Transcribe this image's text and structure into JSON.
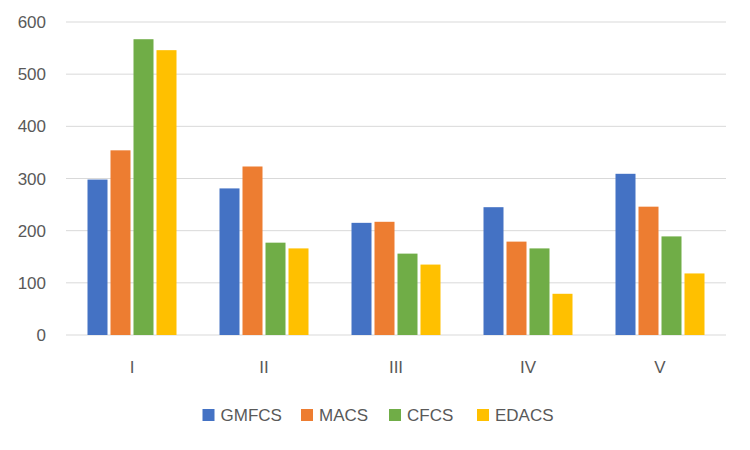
{
  "chart_data": {
    "type": "bar",
    "categories": [
      "I",
      "II",
      "III",
      "IV",
      "V"
    ],
    "series": [
      {
        "name": "GMFCS",
        "color": "#4472c4",
        "values": [
          298,
          281,
          215,
          245,
          309
        ]
      },
      {
        "name": "MACS",
        "color": "#ed7d31",
        "values": [
          354,
          323,
          217,
          179,
          246
        ]
      },
      {
        "name": "CFCS",
        "color": "#70ad47",
        "values": [
          567,
          177,
          156,
          166,
          189
        ]
      },
      {
        "name": "EDACS",
        "color": "#ffc000",
        "values": [
          546,
          166,
          135,
          79,
          118
        ]
      }
    ],
    "ylim": [
      0,
      600
    ],
    "yticks": [
      0,
      100,
      200,
      300,
      400,
      500,
      600
    ],
    "grid": true,
    "legend": "bottom"
  }
}
